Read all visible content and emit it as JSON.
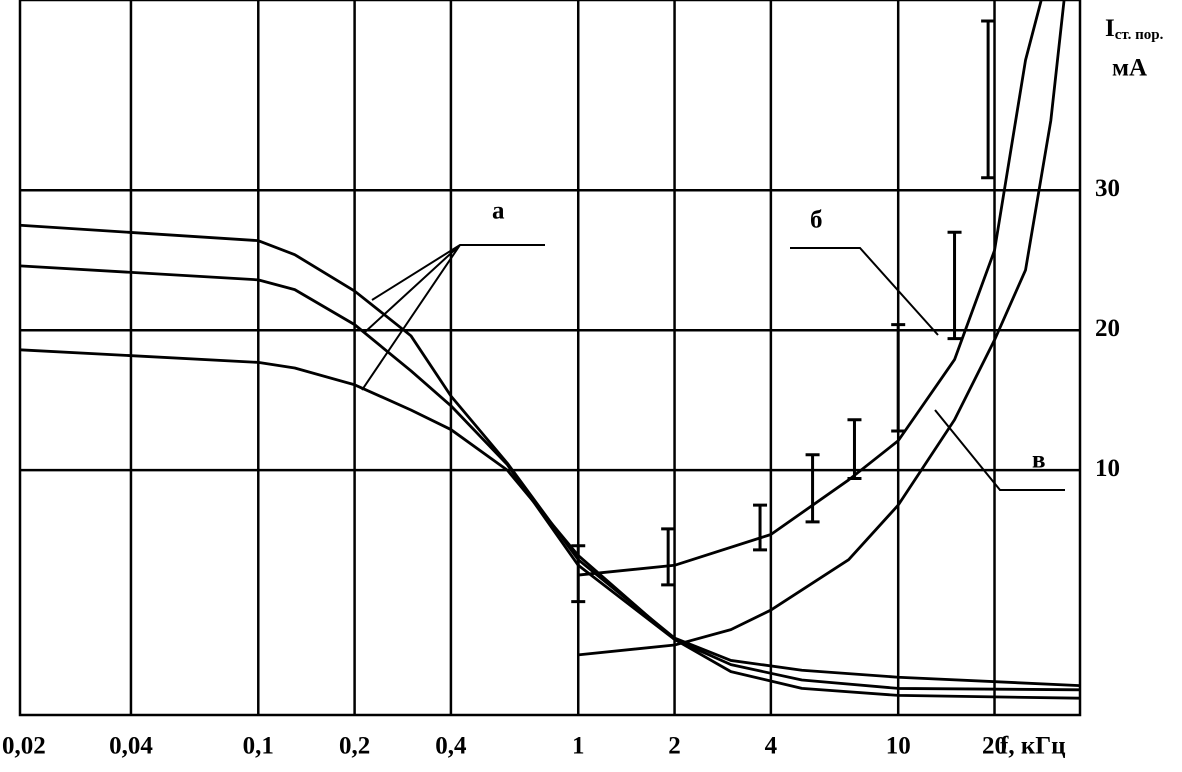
{
  "chart_data": {
    "type": "line",
    "x_label": "f, кГц",
    "y_label": "I",
    "y_label_sub": "ст. пор.",
    "y_unit": "мА",
    "log_x": true,
    "grid": true,
    "color": "#000000",
    "xlim": [
      0.018,
      37
    ],
    "ylim": [
      -7.5,
      43.6
    ],
    "xticks": [
      {
        "value": 0.02,
        "label": "0,02"
      },
      {
        "value": 0.04,
        "label": "0,04"
      },
      {
        "value": 0.1,
        "label": "0,1"
      },
      {
        "value": 0.2,
        "label": "0,2"
      },
      {
        "value": 0.4,
        "label": "0,4"
      },
      1,
      2,
      4,
      10,
      20
    ],
    "yticks": [
      10,
      20,
      30
    ],
    "annotations": [
      "а",
      "б",
      "в"
    ],
    "series": [
      {
        "x": [
          0.018,
          0.1,
          0.13,
          0.2,
          0.3,
          0.4,
          0.6,
          1,
          2,
          3,
          5,
          10,
          37
        ],
        "values": [
          27.5,
          26.4,
          25.4,
          22.8,
          19.6,
          15.3,
          10.5,
          3.6,
          -2.0,
          -3.6,
          -4.3,
          -4.8,
          -5.4
        ]
      },
      {
        "x": [
          0.018,
          0.1,
          0.13,
          0.2,
          0.3,
          0.4,
          0.6,
          1,
          2,
          3,
          5,
          10,
          37
        ],
        "values": [
          24.6,
          23.6,
          22.9,
          20.4,
          17.1,
          14.6,
          10.4,
          3.2,
          -2.1,
          -3.9,
          -5.0,
          -5.6,
          -5.7
        ]
      },
      {
        "x": [
          0.018,
          0.1,
          0.13,
          0.2,
          0.3,
          0.4,
          0.6,
          1,
          2,
          3,
          5,
          10,
          37
        ],
        "values": [
          18.6,
          17.7,
          17.3,
          16.1,
          14.3,
          12.9,
          10.0,
          3.9,
          -2.1,
          -4.4,
          -5.6,
          -6.1,
          -6.3
        ]
      },
      {
        "x": [
          1,
          2,
          4,
          7,
          10,
          15,
          20,
          25,
          28
        ],
        "values": [
          2.5,
          3.2,
          5.4,
          9.3,
          12.1,
          17.9,
          25.7,
          39.3,
          43.6
        ]
      },
      {
        "x": [
          1,
          2,
          3,
          4,
          7,
          10,
          15,
          20,
          25,
          30,
          33
        ],
        "values": [
          -3.2,
          -2.5,
          -1.4,
          0,
          3.6,
          7.5,
          13.6,
          19.3,
          24.3,
          35,
          43.6
        ]
      }
    ],
    "errorbars": {
      "x": [
        1,
        1.91,
        3.7,
        5.4,
        7.3,
        10,
        15,
        19.1
      ],
      "values": [
        2.6,
        3.8,
        5.9,
        8.7,
        11.5,
        16.6,
        23.2,
        36.5
      ],
      "errors": [
        2.0,
        2.0,
        1.6,
        2.4,
        2.1,
        3.8,
        3.8,
        5.6
      ]
    }
  }
}
